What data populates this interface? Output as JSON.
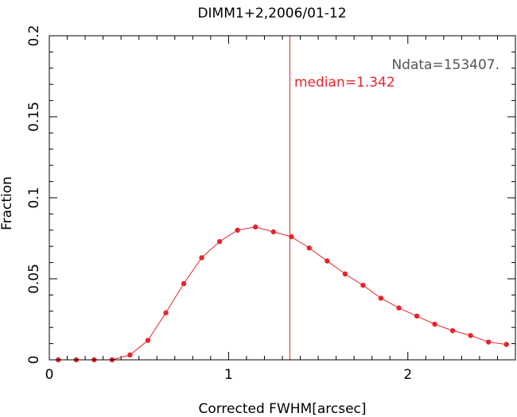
{
  "chart_data": {
    "type": "line",
    "title": "DIMM1+2,2006/01-12",
    "xlabel": "Corrected FWHM[arcsec]",
    "ylabel": "Fraction",
    "xlim": [
      0,
      2.6
    ],
    "ylim": [
      0,
      0.2
    ],
    "xticks": [
      0,
      1,
      2
    ],
    "xtick_labels": [
      "0",
      "1",
      "2"
    ],
    "yticks": [
      0,
      0.05,
      0.1,
      0.15,
      0.2
    ],
    "ytick_labels": [
      "0",
      "0.05",
      "0.1",
      "0.15",
      "0.2"
    ],
    "grid": false,
    "series": [
      {
        "color": "#e8242b",
        "x": [
          0.05,
          0.15,
          0.25,
          0.35,
          0.45,
          0.55,
          0.65,
          0.75,
          0.85,
          0.95,
          1.05,
          1.15,
          1.25,
          1.35,
          1.45,
          1.55,
          1.65,
          1.75,
          1.85,
          1.95,
          2.05,
          2.15,
          2.25,
          2.35,
          2.45,
          2.55
        ],
        "y": [
          0.0,
          0.0,
          0.0,
          0.0,
          0.003,
          0.012,
          0.029,
          0.047,
          0.063,
          0.073,
          0.08,
          0.082,
          0.079,
          0.076,
          0.069,
          0.061,
          0.053,
          0.046,
          0.038,
          0.032,
          0.027,
          0.022,
          0.018,
          0.015,
          0.011,
          0.0095
        ]
      }
    ],
    "vline": {
      "x": 1.342,
      "color": "#e8242b"
    },
    "annotations": {
      "ndata": "Ndata=153407.",
      "median": "median=1.342"
    }
  }
}
